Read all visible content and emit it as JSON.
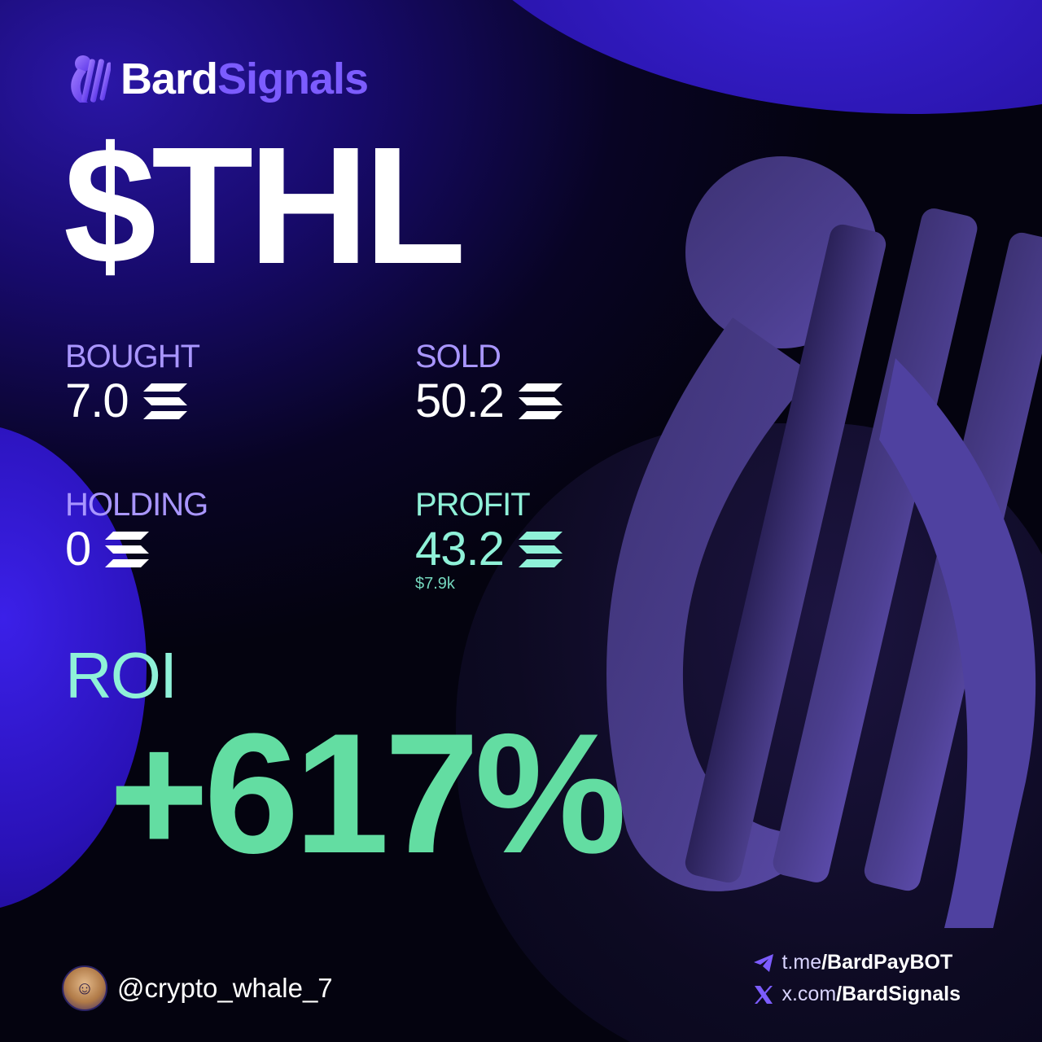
{
  "brand": {
    "name_part1": "Bard",
    "name_part2": "Signals"
  },
  "token": {
    "ticker": "$THL"
  },
  "stats": {
    "bought": {
      "label": "BOUGHT",
      "value": "7.0"
    },
    "sold": {
      "label": "SOLD",
      "value": "50.2"
    },
    "holding": {
      "label": "HOLDING",
      "value": "0"
    },
    "profit": {
      "label": "PROFIT",
      "value": "43.2",
      "usd": "$7.9k"
    }
  },
  "roi": {
    "label": "ROI",
    "value": "+617%"
  },
  "user": {
    "handle": "@crypto_whale_7"
  },
  "links": {
    "telegram": {
      "prefix": "t.me",
      "path": "/BardPayBOT"
    },
    "x": {
      "prefix": "x.com",
      "path": "/BardSignals"
    }
  },
  "icons": {
    "brand": "harp-logo-icon",
    "currency": "solana-icon",
    "telegram": "telegram-icon",
    "x": "x-icon"
  },
  "colors": {
    "accent_purple": "#7c5cff",
    "label_lavender": "#a996ff",
    "profit_teal": "#8ff1d8",
    "roi_green": "#63dda2"
  }
}
